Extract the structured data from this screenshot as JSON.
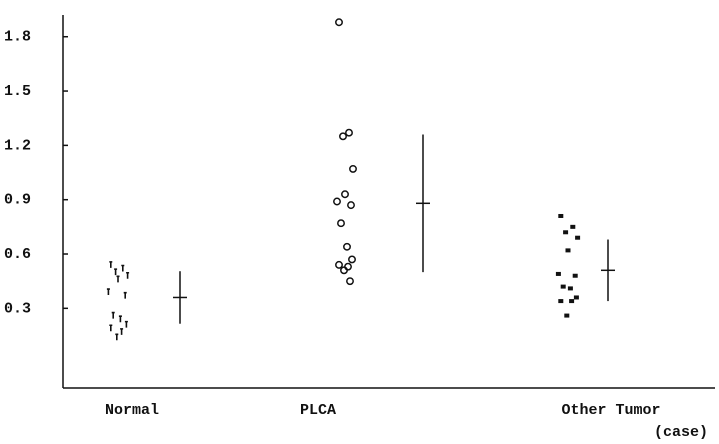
{
  "chart_data": {
    "type": "strip",
    "x_label": "(case)",
    "categories": [
      "Normal",
      "PLCA",
      "Other Tumor"
    ],
    "ylim": [
      -0.14,
      1.92
    ],
    "yticks": [
      0.3,
      0.6,
      0.9,
      1.2,
      1.5,
      1.8
    ],
    "color": "#111111",
    "series": [
      {
        "name": "Normal",
        "marker": "tick",
        "values": [
          0.54,
          0.52,
          0.5,
          0.48,
          0.46,
          0.39,
          0.37,
          0.26,
          0.24,
          0.21,
          0.19,
          0.17,
          0.14
        ],
        "mean": 0.36,
        "sd": 0.145
      },
      {
        "name": "PLCA",
        "marker": "circle-open",
        "values": [
          1.88,
          1.27,
          1.25,
          1.07,
          0.93,
          0.89,
          0.87,
          0.77,
          0.64,
          0.57,
          0.54,
          0.53,
          0.51,
          0.45
        ],
        "mean": 0.88,
        "sd": 0.38
      },
      {
        "name": "Other Tumor",
        "marker": "square-filled",
        "values": [
          0.81,
          0.75,
          0.72,
          0.69,
          0.62,
          0.49,
          0.48,
          0.42,
          0.41,
          0.36,
          0.34,
          0.34,
          0.26
        ],
        "mean": 0.51,
        "sd": 0.17
      }
    ]
  }
}
